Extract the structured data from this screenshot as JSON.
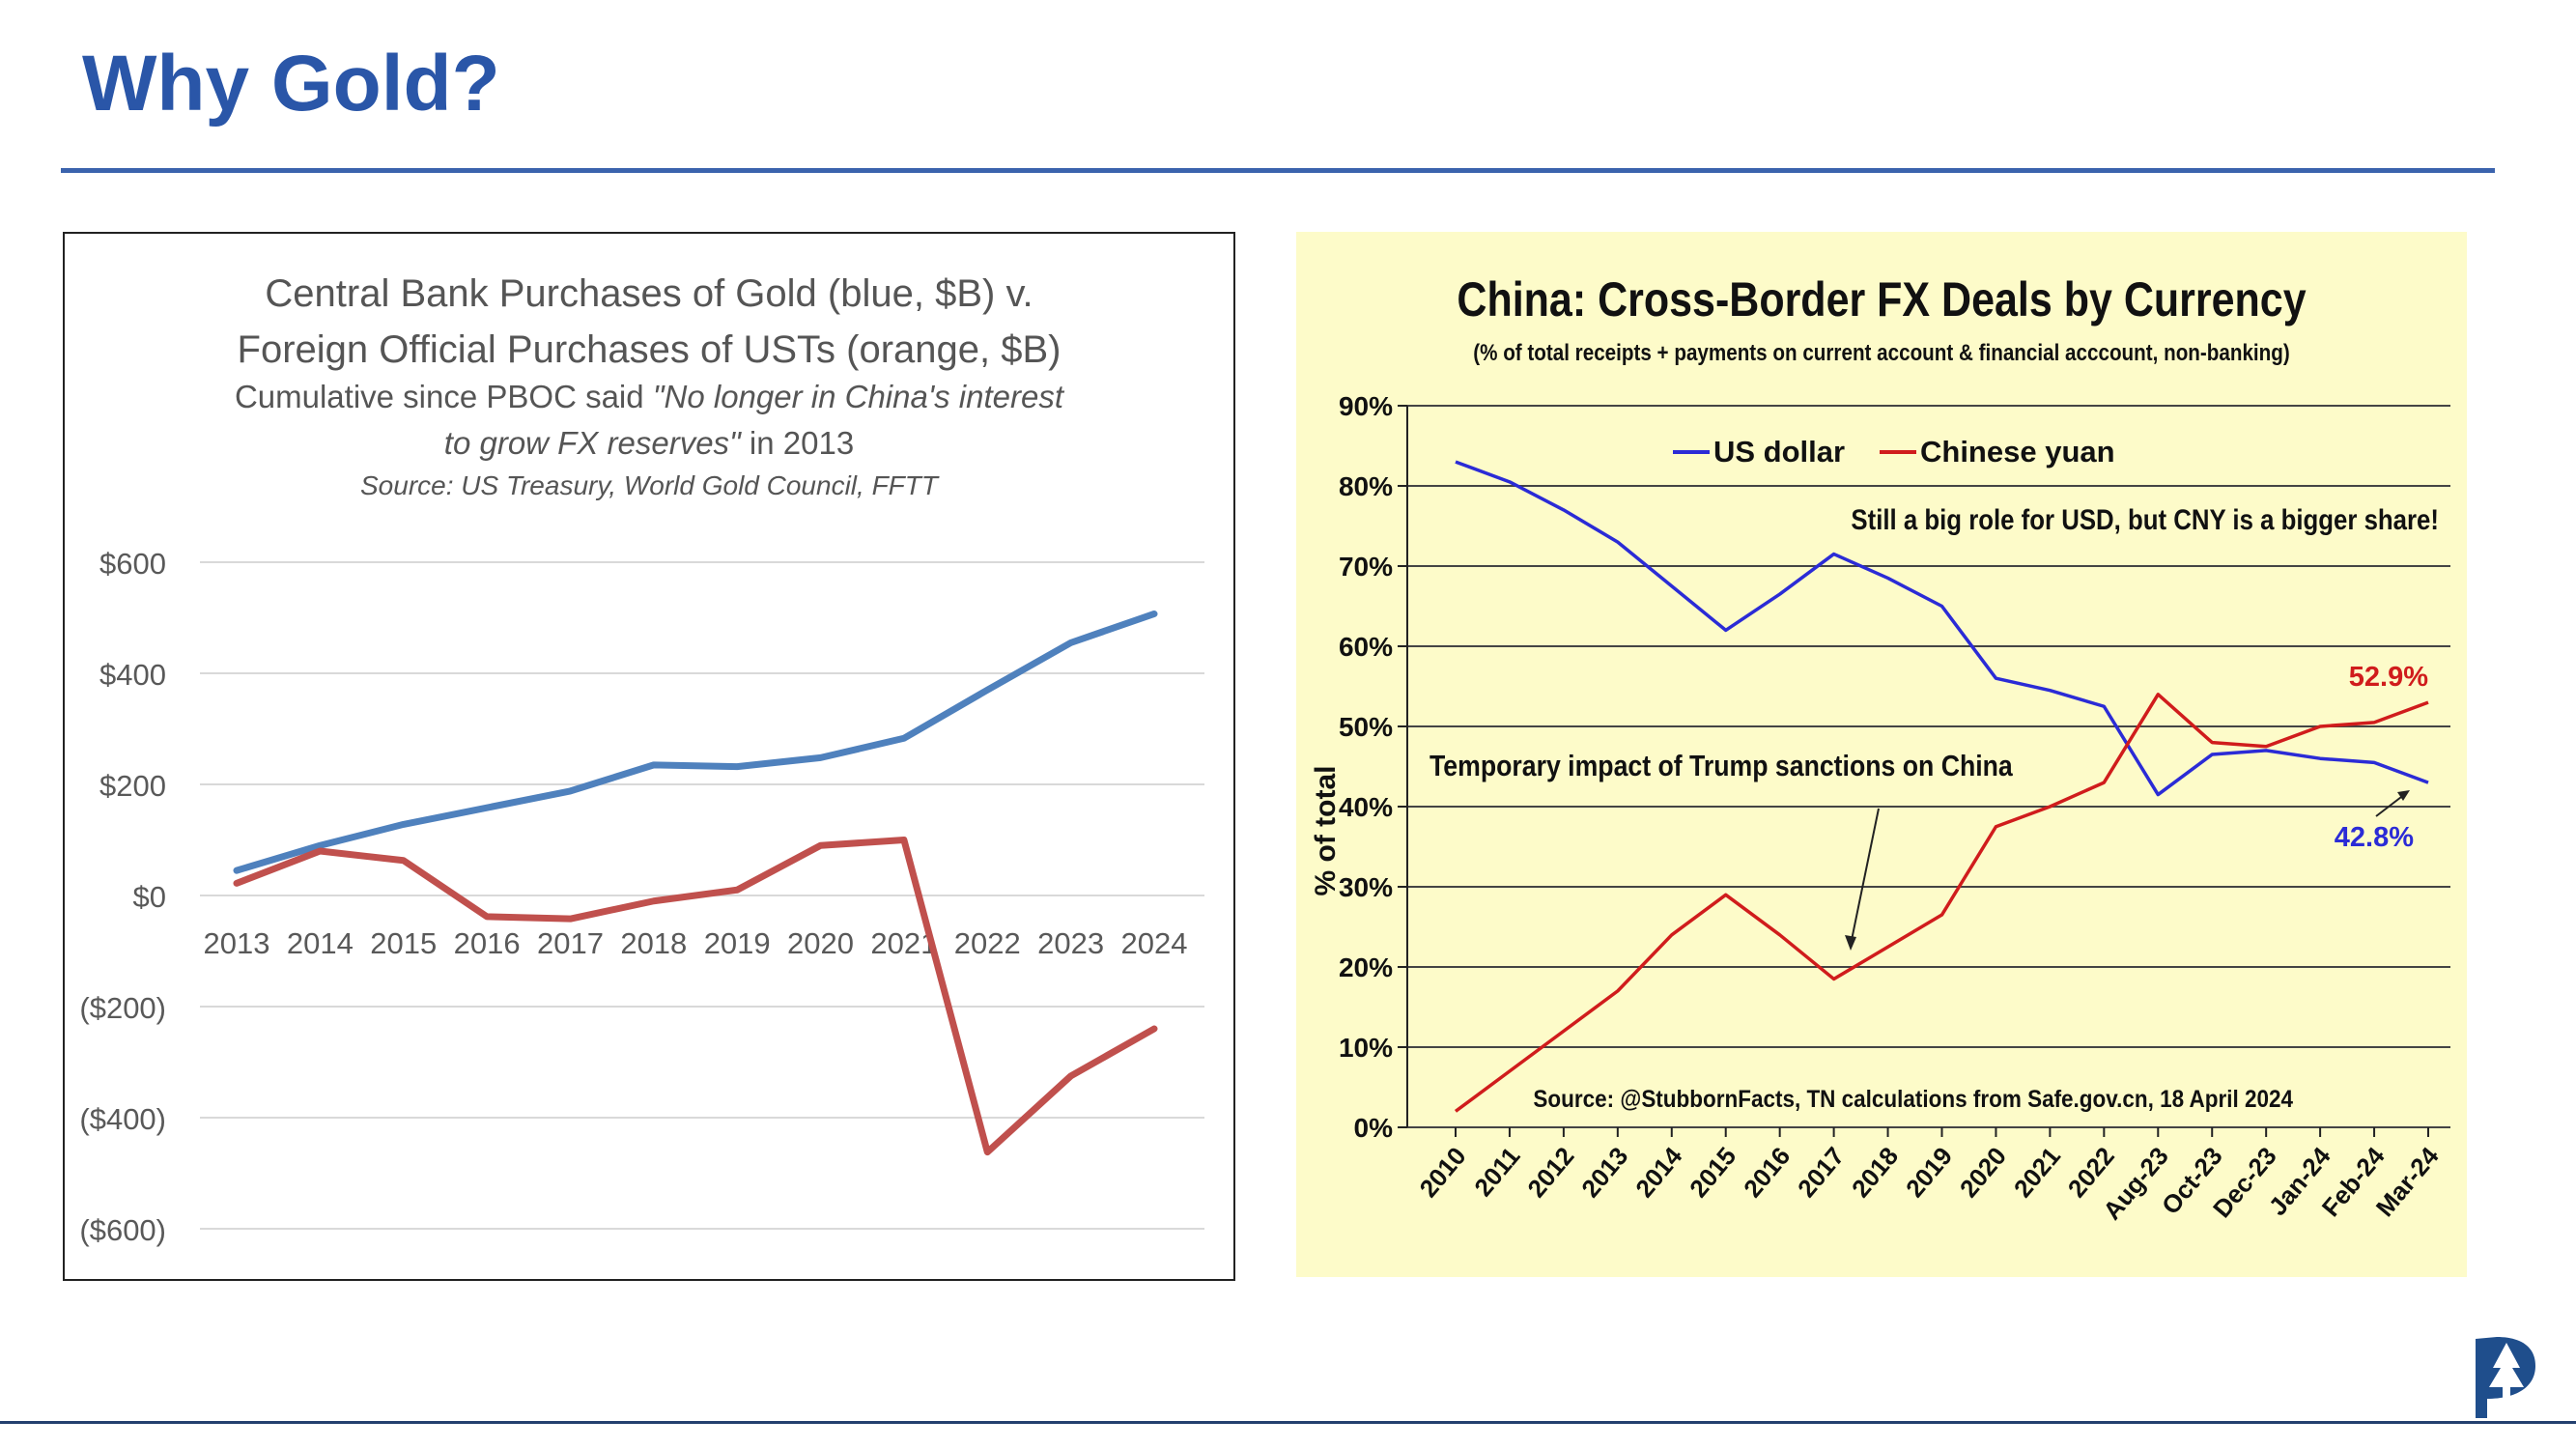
{
  "slide": {
    "title": "Why Gold?"
  },
  "colors": {
    "title_blue": "#2a56a8",
    "rule_blue": "#3b63ad",
    "left_gold_line": "#4f81bd",
    "left_ust_line": "#c0504d",
    "right_bg": "#fdfbc9",
    "right_usd": "#2b2bd6",
    "right_cny": "#d01c1c"
  },
  "logo": {
    "icon": "tree-logo-icon"
  },
  "chart_data": [
    {
      "type": "line",
      "title_line1": "Central Bank Purchases of Gold (blue, $B) v.",
      "title_line2": "Foreign Official Purchases of USTs (orange, $B)",
      "subtitle_line1_a": "Cumulative since PBOC said ",
      "subtitle_line1_b": "\"No longer in China's interest",
      "subtitle_line2_a": "to grow FX reserves\"",
      "subtitle_line2_b": " in 2013",
      "source": "Source: US Treasury, World Gold Council, FFTT",
      "x": [
        "2013",
        "2014",
        "2015",
        "2016",
        "2017",
        "2018",
        "2019",
        "2020",
        "2021",
        "2022",
        "2023",
        "2024"
      ],
      "ylim": [
        -600,
        600
      ],
      "yticks": [
        600,
        400,
        200,
        0,
        -200,
        -400,
        -600
      ],
      "ytick_labels": [
        "$600",
        "$400",
        "$200",
        "$0",
        "($200)",
        "($400)",
        "($600)"
      ],
      "grid": true,
      "series": [
        {
          "color": "#4f81bd",
          "values": [
            45,
            90,
            128,
            158,
            188,
            235,
            232,
            248,
            283,
            370,
            455,
            507
          ]
        },
        {
          "color": "#c0504d",
          "values": [
            22,
            80,
            63,
            -38,
            -42,
            -10,
            10,
            90,
            100,
            -462,
            -325,
            -240
          ]
        }
      ]
    },
    {
      "type": "line",
      "title": "China: Cross-Border FX Deals by Currency",
      "subtitle": "(% of total receipts + payments on current account & financial acccount, non-banking)",
      "ylabel": "% of total",
      "x": [
        "2010",
        "2011",
        "2012",
        "2013",
        "2014",
        "2015",
        "2016",
        "2017",
        "2018",
        "2019",
        "2020",
        "2021",
        "2022",
        "Aug-23",
        "Oct-23",
        "Dec-23",
        "Jan-24",
        "Feb-24",
        "Mar-24"
      ],
      "ylim": [
        0,
        90
      ],
      "yticks": [
        0,
        10,
        20,
        30,
        40,
        50,
        60,
        70,
        80,
        90
      ],
      "ytick_labels": [
        "0%",
        "10%",
        "20%",
        "30%",
        "40%",
        "50%",
        "60%",
        "70%",
        "80%",
        "90%"
      ],
      "grid": true,
      "legend_position": "top",
      "series": [
        {
          "name": "US dollar",
          "color": "#2b2bd6",
          "values": [
            83,
            80.5,
            77,
            73,
            67.5,
            62,
            66.5,
            71.5,
            68.5,
            65,
            56,
            54.5,
            52.5,
            41.5,
            46.5,
            47,
            46,
            45.5,
            43
          ]
        },
        {
          "name": "Chinese yuan",
          "color": "#d01c1c",
          "values": [
            2,
            7,
            12,
            17,
            24,
            29,
            24,
            18.5,
            22.5,
            26.5,
            37.5,
            40,
            43,
            54,
            48,
            47.5,
            50,
            50.5,
            53
          ]
        }
      ],
      "annotations": {
        "headline": "Still a big role for USD, but CNY is a bigger share!",
        "sanctions": "Temporary impact of Trump sanctions on China",
        "cny_end_label": "52.9%",
        "usd_end_label": "42.8%",
        "source": "Source: @StubbornFacts, TN calculations from Safe.gov.cn, 18 April 2024"
      }
    }
  ]
}
